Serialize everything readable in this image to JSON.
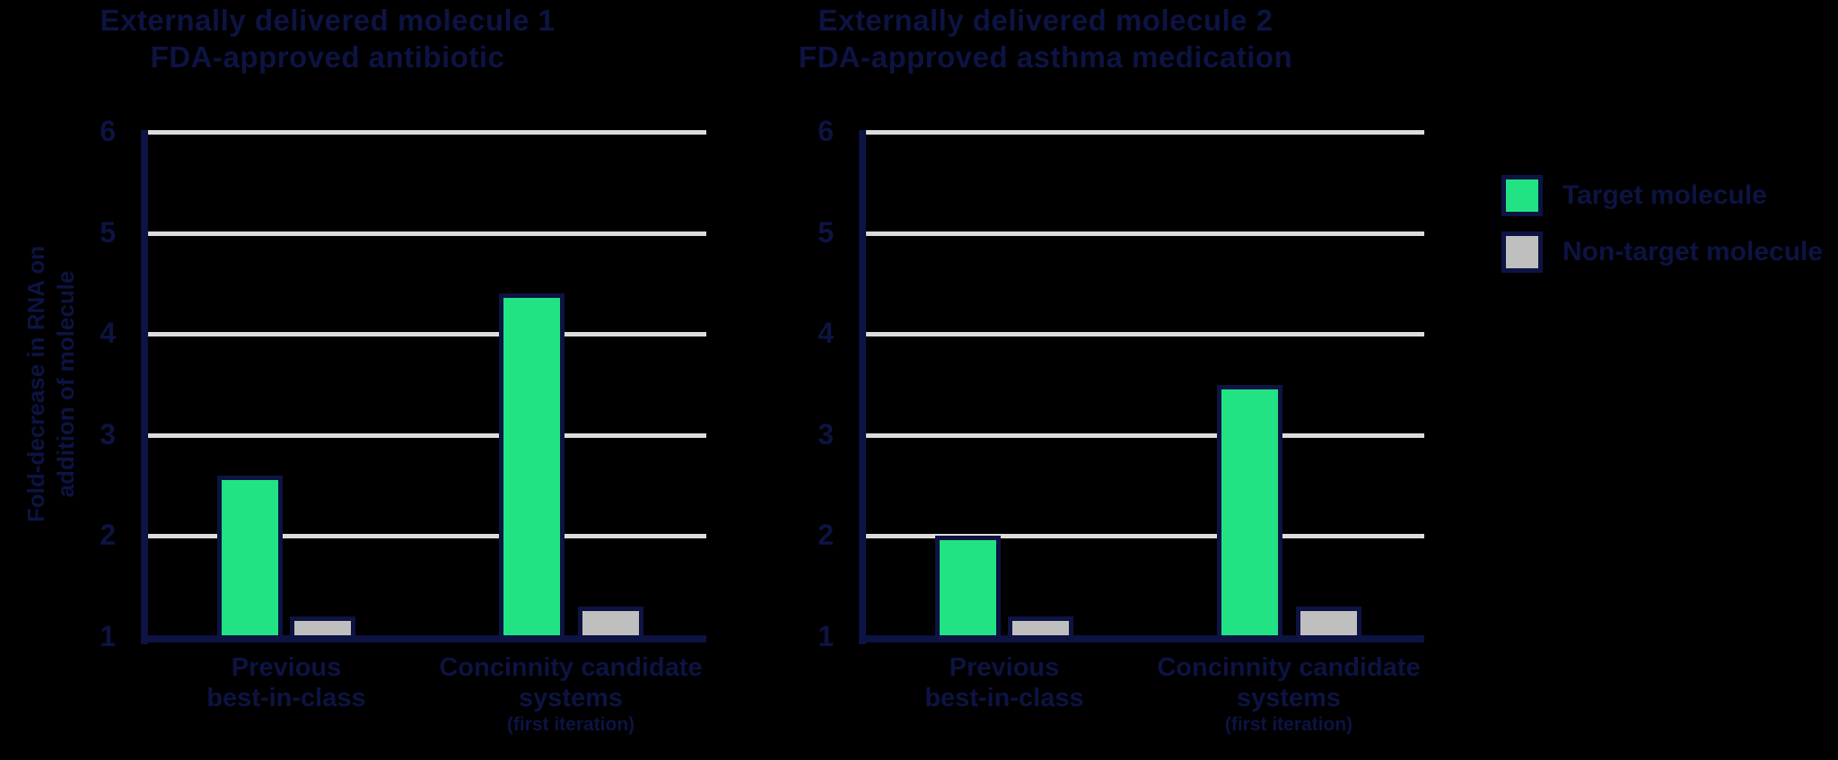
{
  "figure": {
    "background": "#000000",
    "colors": {
      "navy": "#0d1342",
      "target_green": "#21e383",
      "non_target_gray": "#bfbfbf",
      "gridline_gray": "#dcdcdc"
    }
  },
  "legend": {
    "items": [
      {
        "label": "Target molecule",
        "color_key": "target_green"
      },
      {
        "label": "Non-target molecule",
        "color_key": "non_target_gray"
      }
    ]
  },
  "chart_data": [
    {
      "type": "bar",
      "title_line1": "Externally delivered molecule 1",
      "title_line2": "FDA-approved antibiotic",
      "ylabel_line1": "Fold-decrease in RNA on",
      "ylabel_line2": "addition of molecule",
      "ylim": [
        1,
        6
      ],
      "yticks": [
        6,
        5,
        4,
        3,
        2,
        1
      ],
      "grid_values": [
        6,
        5,
        4,
        3,
        2
      ],
      "grid_on": true,
      "legend_position": "outside-right",
      "categories": [
        {
          "line1": "Previous",
          "line2": "best-in-class",
          "note": ""
        },
        {
          "line1": "Concinnity candidate",
          "line2": "systems",
          "note": "(first iteration)"
        }
      ],
      "series": [
        {
          "name": "Target molecule",
          "values": [
            2.6,
            4.4
          ]
        },
        {
          "name": "Non-target molecule",
          "values": [
            1.2,
            1.3
          ]
        }
      ]
    },
    {
      "type": "bar",
      "title_line1": "Externally delivered molecule 2",
      "title_line2": "FDA-approved asthma medication",
      "ylabel_line1": "",
      "ylabel_line2": "",
      "ylim": [
        1,
        6
      ],
      "yticks": [
        6,
        5,
        4,
        3,
        2,
        1
      ],
      "grid_values": [
        6,
        5,
        4,
        3,
        2
      ],
      "grid_on": true,
      "legend_position": "outside-right",
      "categories": [
        {
          "line1": "Previous",
          "line2": "best-in-class",
          "note": ""
        },
        {
          "line1": "Concinnity candidate",
          "line2": "systems",
          "note": "(first iteration)"
        }
      ],
      "series": [
        {
          "name": "Target molecule",
          "values": [
            2.0,
            3.5
          ]
        },
        {
          "name": "Non-target molecule",
          "values": [
            1.2,
            1.3
          ]
        }
      ]
    }
  ]
}
